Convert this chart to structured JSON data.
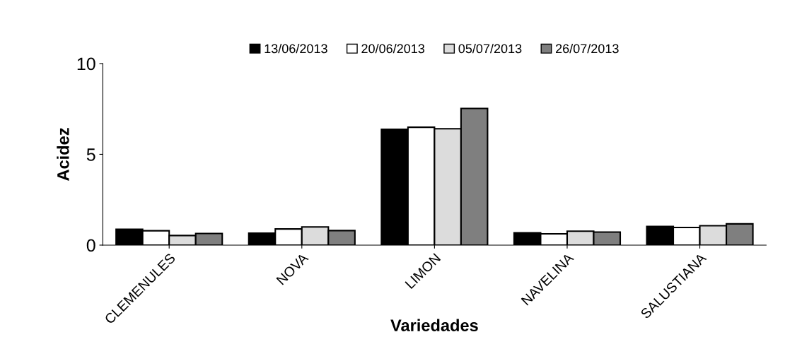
{
  "chart_data": {
    "type": "bar",
    "xlabel": "Variedades",
    "ylabel": "Acidez",
    "categories": [
      "CLEMENULES",
      "NOVA",
      "LIMON",
      "NAVELINA",
      "SALUSTIANA"
    ],
    "series": [
      {
        "name": "13/06/2013",
        "color": "#000000",
        "values": [
          0.87,
          0.66,
          6.38,
          0.68,
          1.03
        ]
      },
      {
        "name": "20/06/2013",
        "color": "#ffffff",
        "values": [
          0.79,
          0.89,
          6.49,
          0.62,
          0.97
        ]
      },
      {
        "name": "05/07/2013",
        "color": "#dcdcdc",
        "values": [
          0.53,
          1.0,
          6.41,
          0.77,
          1.07
        ]
      },
      {
        "name": "26/07/2013",
        "color": "#7f7f7f",
        "values": [
          0.64,
          0.8,
          7.53,
          0.72,
          1.17
        ]
      }
    ],
    "ylim": [
      0,
      10
    ],
    "yticks": [
      0,
      5,
      10
    ],
    "grid": false,
    "legend": "top"
  }
}
